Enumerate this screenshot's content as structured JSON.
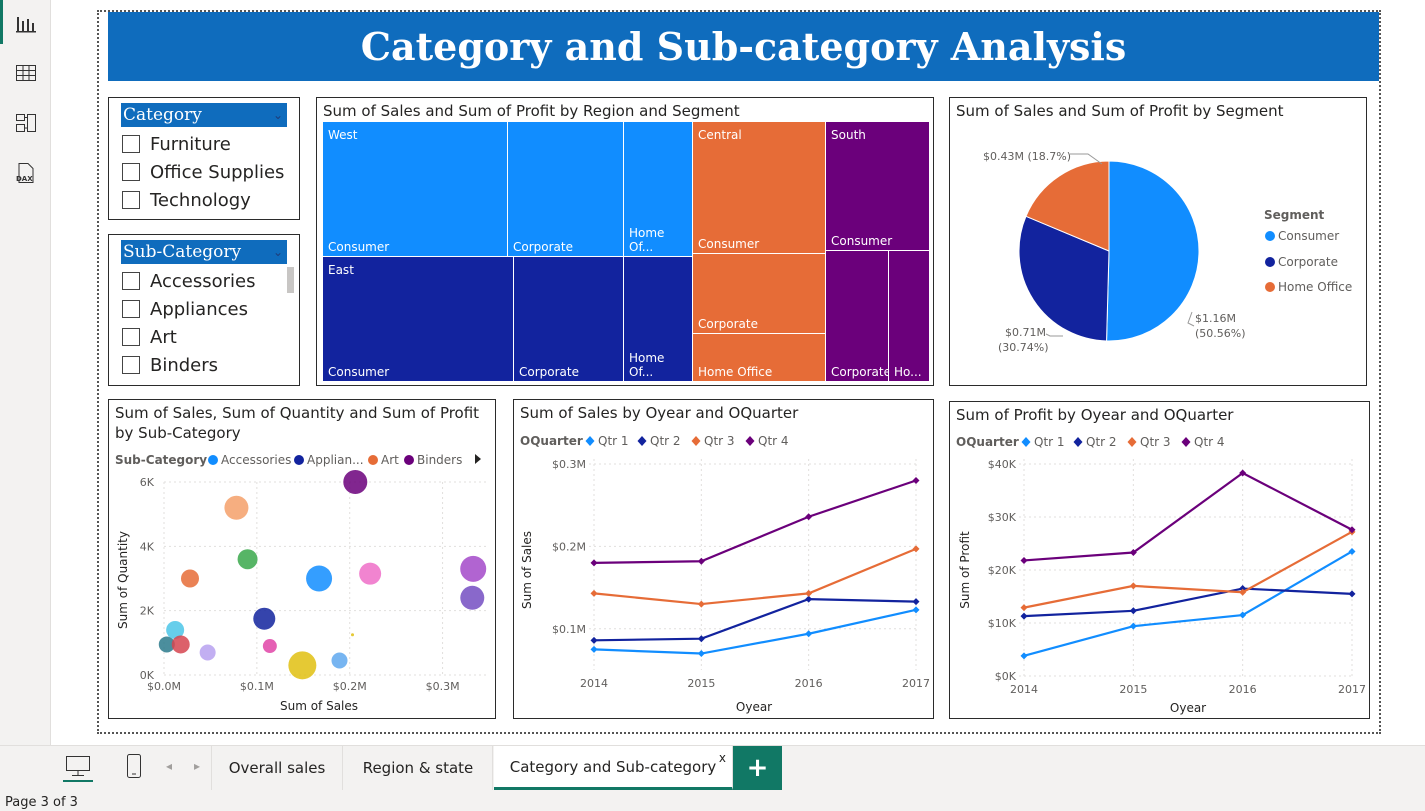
{
  "report_title": "Category and Sub-category Analysis",
  "rail": {
    "icons": [
      "report-view-icon",
      "table-view-icon",
      "model-view-icon",
      "dax-query-icon"
    ],
    "dax_label": "DAX"
  },
  "category_slicer": {
    "header": "Category",
    "items": [
      "Furniture",
      "Office Supplies",
      "Technology"
    ]
  },
  "subcategory_slicer": {
    "header": "Sub-Category",
    "items": [
      "Accessories",
      "Appliances",
      "Art",
      "Binders"
    ]
  },
  "treemap": {
    "title": "Sum of Sales and Sum of Profit by Region and Segment",
    "regions": [
      {
        "name": "West",
        "color": "#118dff",
        "segments": [
          "Consumer",
          "Corporate",
          "Home Of..."
        ]
      },
      {
        "name": "East",
        "color": "#12239e",
        "segments": [
          "Consumer",
          "Corporate",
          "Home Of..."
        ]
      },
      {
        "name": "Central",
        "color": "#e66c37",
        "segments": [
          "Consumer",
          "Corporate",
          "Home Office"
        ]
      },
      {
        "name": "South",
        "color": "#6b007b",
        "segments": [
          "Consumer",
          "Corporate",
          "Ho..."
        ]
      }
    ]
  },
  "pie": {
    "title": "Sum of Sales and Sum of Profit by Segment",
    "legend_title": "Segment",
    "slices": [
      {
        "name": "Consumer",
        "value": 1.16,
        "pct": 50.56,
        "label1": "$1.16M",
        "label2": "(50.56%)",
        "color": "#118dff"
      },
      {
        "name": "Corporate",
        "value": 0.71,
        "pct": 30.74,
        "label1": "$0.71M",
        "label2": "(30.74%)",
        "color": "#12239e"
      },
      {
        "name": "Home Office",
        "value": 0.43,
        "pct": 18.7,
        "label1": "$0.43M (18.7%)",
        "label2": "",
        "color": "#e66c37"
      }
    ]
  },
  "scatter": {
    "title_line1": "Sum of Sales, Sum of Quantity and Sum of Profit",
    "title_line2": "by Sub-Category",
    "legend_title": "Sub-Category",
    "legend": [
      {
        "name": "Accessories",
        "color": "#118dff"
      },
      {
        "name": "Applian...",
        "color": "#12239e"
      },
      {
        "name": "Art",
        "color": "#e66c37"
      },
      {
        "name": "Binders",
        "color": "#6b007b"
      }
    ],
    "xlabel": "Sum of Sales",
    "ylabel": "Sum of Quantity",
    "xticks": [
      "$0.0M",
      "$0.1M",
      "$0.2M",
      "$0.3M"
    ],
    "yticks": [
      "0K",
      "2K",
      "4K",
      "6K"
    ]
  },
  "sales_line": {
    "title": "Sum of Sales by Oyear and OQuarter",
    "legend_title": "OQuarter",
    "xlabel": "Oyear",
    "ylabel": "Sum of Sales",
    "yticks": [
      "$0.1M",
      "$0.2M",
      "$0.3M"
    ]
  },
  "profit_line": {
    "title": "Sum of Profit by Oyear and OQuarter",
    "legend_title": "OQuarter",
    "xlabel": "Oyear",
    "ylabel": "Sum of Profit",
    "yticks": [
      "$0K",
      "$10K",
      "$20K",
      "$30K",
      "$40K"
    ]
  },
  "chart_data": [
    {
      "type": "scatter",
      "title": "Sum of Sales, Sum of Quantity and Sum of Profit by Sub-Category",
      "xlabel": "Sum of Sales",
      "ylabel": "Sum of Quantity",
      "xlim": [
        0,
        0.35
      ],
      "ylim": [
        0,
        6000
      ],
      "points": [
        {
          "x": 0.003,
          "y": 950,
          "size": 8,
          "color": "#2b7a8c"
        },
        {
          "x": 0.012,
          "y": 1400,
          "size": 9,
          "color": "#4bc6e8"
        },
        {
          "x": 0.018,
          "y": 950,
          "size": 9,
          "color": "#d64550"
        },
        {
          "x": 0.028,
          "y": 3000,
          "size": 9,
          "color": "#e66c37"
        },
        {
          "x": 0.047,
          "y": 700,
          "size": 8,
          "color": "#b7a1f0"
        },
        {
          "x": 0.078,
          "y": 5200,
          "size": 12,
          "color": "#f5a06a"
        },
        {
          "x": 0.09,
          "y": 3600,
          "size": 10,
          "color": "#3aa84b"
        },
        {
          "x": 0.108,
          "y": 1750,
          "size": 11,
          "color": "#12239e"
        },
        {
          "x": 0.114,
          "y": 900,
          "size": 7,
          "color": "#e044a7"
        },
        {
          "x": 0.149,
          "y": 300,
          "size": 14,
          "color": "#e0c010"
        },
        {
          "x": 0.167,
          "y": 3000,
          "size": 13,
          "color": "#118dff"
        },
        {
          "x": 0.189,
          "y": 450,
          "size": 8,
          "color": "#5fa8ef"
        },
        {
          "x": 0.206,
          "y": 6000,
          "size": 12,
          "color": "#6b007b"
        },
        {
          "x": 0.203,
          "y": 1250,
          "size": 1.5,
          "color": "#e0c010"
        },
        {
          "x": 0.222,
          "y": 3150,
          "size": 11,
          "color": "#ef6ec8"
        },
        {
          "x": 0.333,
          "y": 3300,
          "size": 13,
          "color": "#a349c9"
        },
        {
          "x": 0.332,
          "y": 2400,
          "size": 12,
          "color": "#744ec2"
        }
      ]
    },
    {
      "type": "line",
      "title": "Sum of Sales by Oyear and OQuarter",
      "xlabel": "Oyear",
      "ylabel": "Sum of Sales",
      "x": [
        "2014",
        "2015",
        "2016",
        "2017"
      ],
      "ylim": [
        0.05,
        0.3
      ],
      "series": [
        {
          "name": "Qtr 1",
          "color": "#118dff",
          "values": [
            0.075,
            0.07,
            0.094,
            0.123
          ]
        },
        {
          "name": "Qtr 2",
          "color": "#12239e",
          "values": [
            0.086,
            0.088,
            0.136,
            0.133
          ]
        },
        {
          "name": "Qtr 3",
          "color": "#e66c37",
          "values": [
            0.143,
            0.13,
            0.143,
            0.197
          ]
        },
        {
          "name": "Qtr 4",
          "color": "#6b007b",
          "values": [
            0.18,
            0.182,
            0.236,
            0.28
          ]
        }
      ]
    },
    {
      "type": "line",
      "title": "Sum of Profit by Oyear and OQuarter",
      "xlabel": "Oyear",
      "ylabel": "Sum of Profit",
      "x": [
        "2014",
        "2015",
        "2016",
        "2017"
      ],
      "ylim": [
        0,
        40000
      ],
      "series": [
        {
          "name": "Qtr 1",
          "color": "#118dff",
          "values": [
            3800,
            9400,
            11500,
            23500
          ]
        },
        {
          "name": "Qtr 2",
          "color": "#12239e",
          "values": [
            11300,
            12300,
            16500,
            15500
          ]
        },
        {
          "name": "Qtr 3",
          "color": "#e66c37",
          "values": [
            12900,
            17000,
            15800,
            27200
          ]
        },
        {
          "name": "Qtr 4",
          "color": "#6b007b",
          "values": [
            21800,
            23300,
            38300,
            27600
          ]
        }
      ]
    }
  ],
  "tabs": {
    "items": [
      "Overall sales",
      "Region & state",
      "Category and Sub-category"
    ],
    "close": "x",
    "add": "+"
  },
  "status": {
    "page_info": "Page 3 of 3"
  }
}
